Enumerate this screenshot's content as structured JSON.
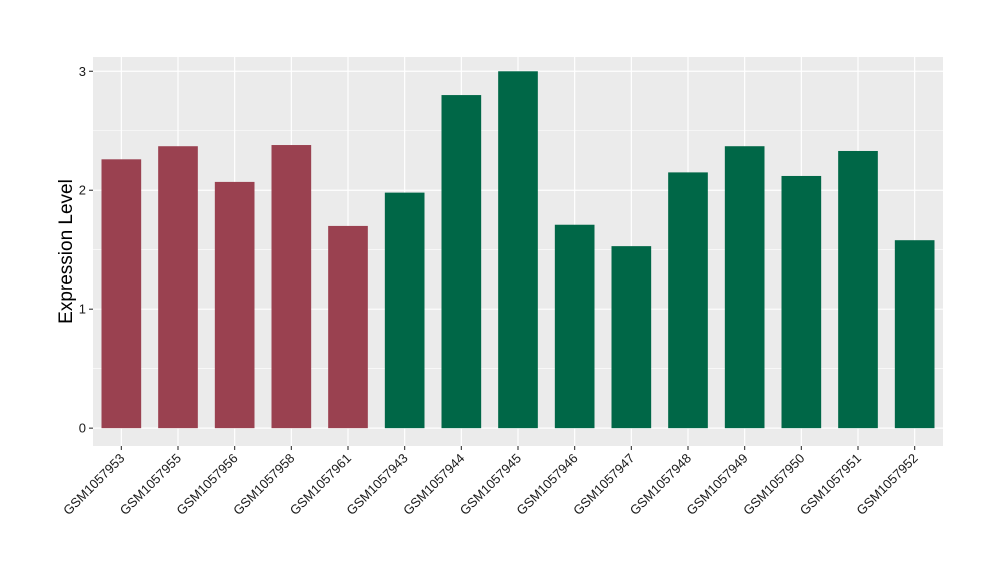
{
  "chart_data": {
    "type": "bar",
    "title": "",
    "xlabel": "",
    "ylabel": "Expression Level",
    "ylim": [
      -0.15,
      3.12
    ],
    "yticks": [
      0,
      1,
      2,
      3
    ],
    "grid": true,
    "legend": "none",
    "colors": {
      "group_a": "#9a4150",
      "group_b": "#006747",
      "panel_background": "#ebebeb",
      "gridline": "#ffffff"
    },
    "categories": [
      "GSM1057953",
      "GSM1057955",
      "GSM1057956",
      "GSM1057958",
      "GSM1057961",
      "GSM1057943",
      "GSM1057944",
      "GSM1057945",
      "GSM1057946",
      "GSM1057947",
      "GSM1057948",
      "GSM1057949",
      "GSM1057950",
      "GSM1057951",
      "GSM1057952"
    ],
    "values": [
      2.26,
      2.37,
      2.07,
      2.38,
      1.7,
      1.98,
      2.8,
      3.0,
      1.71,
      1.53,
      2.15,
      2.37,
      2.12,
      2.33,
      1.58
    ],
    "bar_groups": [
      "a",
      "a",
      "a",
      "a",
      "a",
      "b",
      "b",
      "b",
      "b",
      "b",
      "b",
      "b",
      "b",
      "b",
      "b"
    ]
  }
}
